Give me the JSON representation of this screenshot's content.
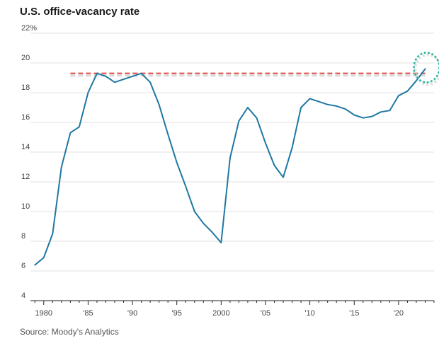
{
  "header": {
    "title": "U.S. office-vacancy rate"
  },
  "footer": {
    "source": "Source: Moody's Analytics"
  },
  "colors": {
    "line": "#1f78a3",
    "reference": "#e0504a",
    "highlight": "#2ab7a0",
    "grid": "#e2e2e2"
  },
  "chart_data": {
    "type": "line",
    "title": "U.S. office-vacancy rate",
    "xlabel": "",
    "ylabel": "",
    "xlim": [
      1978.5,
      2024
    ],
    "ylim": [
      4,
      22
    ],
    "grid": true,
    "yticks": [
      4,
      6,
      8,
      10,
      12,
      14,
      16,
      18,
      20,
      22
    ],
    "ytick_labels": [
      "4",
      "6",
      "8",
      "10",
      "12",
      "14",
      "16",
      "18",
      "20",
      "22%"
    ],
    "xticks": [
      1980,
      1985,
      1990,
      1995,
      2000,
      2005,
      2010,
      2015,
      2020
    ],
    "xtick_labels": [
      "1980",
      "'85",
      "'90",
      "'95",
      "2000",
      "'05",
      "'10",
      "'15",
      "'20"
    ],
    "series": [
      {
        "x": [
          1979,
          1980,
          1981,
          1982,
          1983,
          1984,
          1985,
          1986,
          1987,
          1988,
          1989,
          1990,
          1991,
          1992,
          1993,
          1994,
          1995,
          1996,
          1997,
          1998,
          1999,
          2000,
          2001,
          2002,
          2003,
          2004,
          2005,
          2006,
          2007,
          2008,
          2009,
          2010,
          2011,
          2012,
          2013,
          2014,
          2015,
          2016,
          2017,
          2018,
          2019,
          2020,
          2021,
          2022,
          2023
        ],
        "values": [
          6.4,
          6.9,
          8.5,
          13.0,
          15.3,
          15.7,
          18.0,
          19.3,
          19.1,
          18.7,
          18.9,
          19.1,
          19.3,
          18.7,
          17.2,
          15.2,
          13.3,
          11.7,
          10.0,
          9.2,
          8.6,
          7.9,
          13.6,
          16.1,
          17.0,
          16.3,
          14.6,
          13.1,
          12.3,
          14.3,
          17.0,
          17.6,
          17.4,
          17.2,
          17.1,
          16.9,
          16.5,
          16.3,
          16.4,
          16.7,
          16.8,
          17.8,
          18.1,
          18.8,
          19.6
        ]
      }
    ],
    "reference_line": {
      "y": 19.3,
      "x_range": [
        1983,
        2023
      ],
      "style": "dashed"
    },
    "highlight": {
      "x": 2023,
      "y": 19.6,
      "shape": "dashed-circle"
    }
  }
}
